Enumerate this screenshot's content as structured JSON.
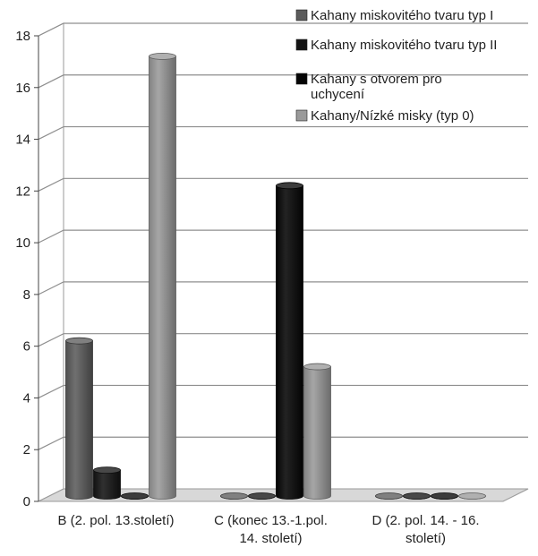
{
  "chart_data": {
    "type": "bar",
    "title": "",
    "xlabel": "",
    "ylabel": "",
    "ylim": [
      0,
      18
    ],
    "yticks": [
      0,
      2,
      4,
      6,
      8,
      10,
      12,
      14,
      16,
      18
    ],
    "grid": true,
    "three_d": true,
    "legend_position": "top-right",
    "categories": [
      [
        "B (2. pol. 13.století)"
      ],
      [
        "C (konec 13.-1.pol.",
        "14. století)"
      ],
      [
        "D (2. pol. 14. - 16.",
        "století)"
      ]
    ],
    "series": [
      {
        "name": "Kahany miskovitého tvaru typ I",
        "color": "#5c5c5c",
        "values": [
          6,
          0,
          0
        ]
      },
      {
        "name": "Kahany miskovitého tvaru typ II",
        "color": "#141414",
        "values": [
          1,
          0,
          0
        ]
      },
      {
        "name": "Kahany s otvorem pro uchycení",
        "color": "#050505",
        "values": [
          0,
          12,
          0
        ]
      },
      {
        "name": "Kahany/Nízké misky (typ 0)",
        "color": "#9a9a9a",
        "values": [
          17,
          5,
          0
        ]
      }
    ]
  }
}
